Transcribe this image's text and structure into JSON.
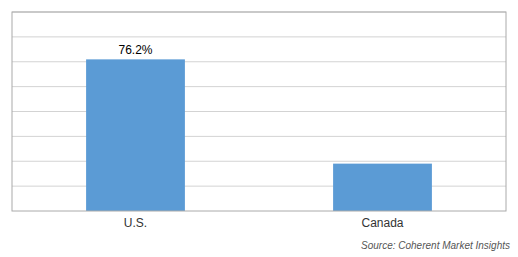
{
  "chart_data": {
    "type": "bar",
    "categories": [
      "U.S.",
      "Canada"
    ],
    "values": [
      76.2,
      23.8
    ],
    "value_labels": [
      "76.2%",
      null
    ],
    "data_labels": true,
    "color": "#5b9bd5",
    "ylim": [
      0,
      100
    ],
    "yticks": [
      12.5,
      25,
      37.5,
      50,
      62.5,
      75,
      87.5,
      100
    ],
    "grid": true,
    "tick_labels": "x",
    "annotations": [
      "Source: Coherent Market Insights"
    ]
  }
}
